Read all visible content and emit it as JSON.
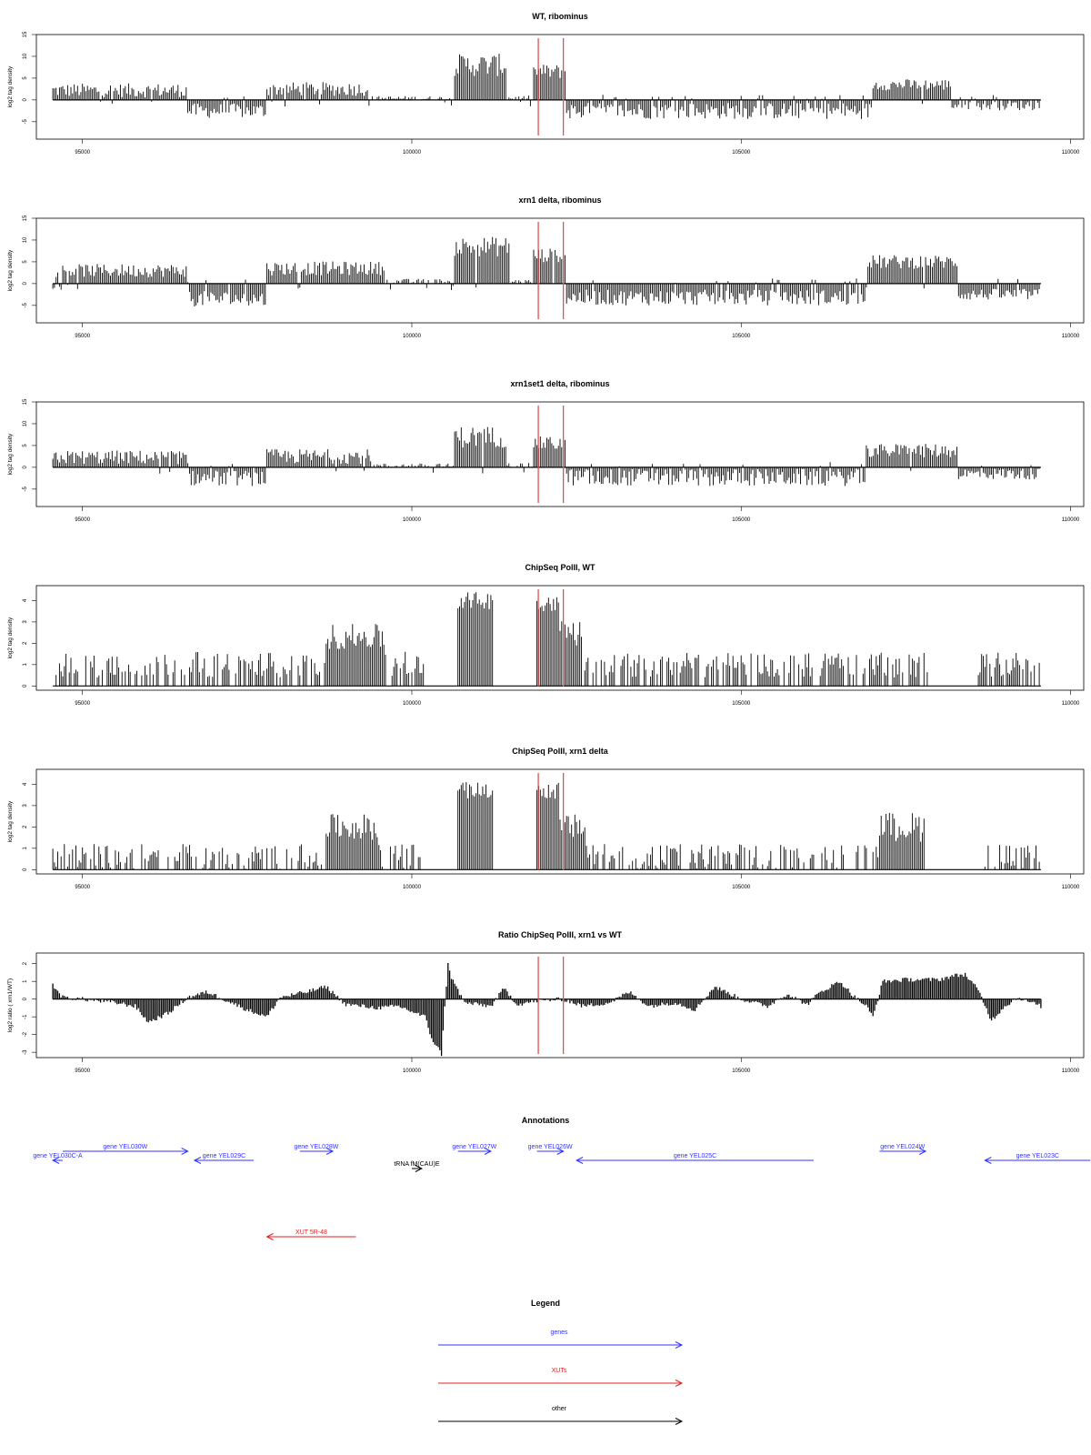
{
  "chart_data": [
    {
      "type": "bar",
      "title": "WT, ribominus",
      "ylabel": "log2 tag density",
      "ylim": [
        -9,
        15
      ],
      "yticks": [
        -5,
        0,
        5,
        10,
        15
      ],
      "xlim": [
        94300,
        110200
      ],
      "xticks": [
        95000,
        100000,
        105000,
        110000
      ],
      "x_start": 94550,
      "x_end": 109550,
      "step": 25,
      "red_lines": [
        101920,
        102300
      ],
      "segments": [
        {
          "x0": 94550,
          "x1": 96600,
          "level": 2.2,
          "var": 1.6,
          "sign": 1
        },
        {
          "x0": 96600,
          "x1": 97800,
          "level": -2.5,
          "var": 1.7,
          "sign": -1
        },
        {
          "x0": 97800,
          "x1": 99350,
          "level": 2.5,
          "var": 1.6,
          "sign": 1
        },
        {
          "x0": 99350,
          "x1": 100650,
          "level": 0.3,
          "var": 0.6,
          "sign": 1
        },
        {
          "x0": 100650,
          "x1": 101430,
          "level": 8.0,
          "var": 2.6,
          "sign": 1
        },
        {
          "x0": 101430,
          "x1": 101850,
          "level": 0.4,
          "var": 0.6,
          "sign": 1
        },
        {
          "x0": 101850,
          "x1": 102350,
          "level": 6.5,
          "var": 1.7,
          "sign": 1
        },
        {
          "x0": 102350,
          "x1": 107000,
          "level": -2.5,
          "var": 1.9,
          "sign": -1
        },
        {
          "x0": 107000,
          "x1": 108200,
          "level": 3.5,
          "var": 1.3,
          "sign": 1
        },
        {
          "x0": 108200,
          "x1": 109550,
          "level": -1.2,
          "var": 1.2,
          "sign": -1
        }
      ]
    },
    {
      "type": "bar",
      "title": "xrn1 delta, ribominus",
      "ylabel": "log2 tag density",
      "ylim": [
        -9,
        15
      ],
      "yticks": [
        -5,
        0,
        5,
        10,
        15
      ],
      "xlim": [
        94300,
        110200
      ],
      "xticks": [
        95000,
        100000,
        105000,
        110000
      ],
      "x_start": 94550,
      "x_end": 109550,
      "step": 25,
      "red_lines": [
        101920,
        102300
      ],
      "segments": [
        {
          "x0": 94550,
          "x1": 96600,
          "level": 3.0,
          "var": 1.5,
          "sign": 1
        },
        {
          "x0": 96600,
          "x1": 97800,
          "level": -3.5,
          "var": 1.8,
          "sign": -1
        },
        {
          "x0": 97800,
          "x1": 99600,
          "level": 3.5,
          "var": 1.6,
          "sign": 1
        },
        {
          "x0": 99600,
          "x1": 100650,
          "level": 0.4,
          "var": 0.7,
          "sign": 1
        },
        {
          "x0": 100650,
          "x1": 101500,
          "level": 8.5,
          "var": 2.3,
          "sign": 1
        },
        {
          "x0": 101500,
          "x1": 101850,
          "level": 0.4,
          "var": 0.6,
          "sign": 1
        },
        {
          "x0": 101850,
          "x1": 102350,
          "level": 6.5,
          "var": 1.6,
          "sign": 1
        },
        {
          "x0": 102350,
          "x1": 106900,
          "level": -3.2,
          "var": 1.8,
          "sign": -1
        },
        {
          "x0": 106900,
          "x1": 108300,
          "level": 5.0,
          "var": 1.6,
          "sign": 1
        },
        {
          "x0": 108300,
          "x1": 109550,
          "level": -2.5,
          "var": 1.3,
          "sign": -1
        }
      ]
    },
    {
      "type": "bar",
      "title": "xrn1set1 delta, ribominus",
      "ylabel": "log2 tag density",
      "ylim": [
        -9,
        15
      ],
      "yticks": [
        -5,
        0,
        5,
        10,
        15
      ],
      "xlim": [
        94300,
        110200
      ],
      "xticks": [
        95000,
        100000,
        105000,
        110000
      ],
      "x_start": 94550,
      "x_end": 109550,
      "step": 25,
      "red_lines": [
        101920,
        102300
      ],
      "segments": [
        {
          "x0": 94550,
          "x1": 96600,
          "level": 2.3,
          "var": 1.6,
          "sign": 1
        },
        {
          "x0": 96600,
          "x1": 97800,
          "level": -2.5,
          "var": 1.8,
          "sign": -1
        },
        {
          "x0": 97800,
          "x1": 99400,
          "level": 2.5,
          "var": 1.7,
          "sign": 1
        },
        {
          "x0": 99400,
          "x1": 100650,
          "level": 0.3,
          "var": 0.6,
          "sign": 1
        },
        {
          "x0": 100650,
          "x1": 101450,
          "level": 7.0,
          "var": 2.5,
          "sign": 1
        },
        {
          "x0": 101450,
          "x1": 101850,
          "level": 0.4,
          "var": 0.6,
          "sign": 1
        },
        {
          "x0": 101850,
          "x1": 102350,
          "level": 5.5,
          "var": 1.6,
          "sign": 1
        },
        {
          "x0": 102350,
          "x1": 106900,
          "level": -2.3,
          "var": 2.0,
          "sign": -1
        },
        {
          "x0": 106900,
          "x1": 108300,
          "level": 3.8,
          "var": 1.6,
          "sign": 1
        },
        {
          "x0": 108300,
          "x1": 109550,
          "level": -1.5,
          "var": 1.3,
          "sign": -1
        }
      ]
    },
    {
      "type": "bar",
      "title": "ChipSeq PolII, WT",
      "ylabel": "log2 tag density",
      "ylim": [
        -0.2,
        4.7
      ],
      "yticks": [
        0,
        1,
        2,
        3,
        4
      ],
      "xlim": [
        94300,
        110200
      ],
      "xticks": [
        95000,
        100000,
        105000,
        110000
      ],
      "x_start": 94550,
      "x_end": 109550,
      "step": 25,
      "red_lines": [
        101920,
        102300
      ],
      "segments": [
        {
          "x0": 94550,
          "x1": 98700,
          "level": 1.0,
          "var": 0.6,
          "sign": 1,
          "sparse": 0.35
        },
        {
          "x0": 98700,
          "x1": 99600,
          "level": 2.3,
          "var": 0.6,
          "sign": 1
        },
        {
          "x0": 99600,
          "x1": 100200,
          "level": 1.0,
          "var": 0.6,
          "sign": 1,
          "sparse": 0.35
        },
        {
          "x0": 100200,
          "x1": 100700,
          "level": 0,
          "var": 0,
          "sign": 1,
          "sparse": 1
        },
        {
          "x0": 100700,
          "x1": 101250,
          "level": 4.0,
          "var": 0.4,
          "sign": 1
        },
        {
          "x0": 101250,
          "x1": 101900,
          "level": 0,
          "var": 0,
          "sign": 1,
          "sparse": 1
        },
        {
          "x0": 101900,
          "x1": 102250,
          "level": 3.9,
          "var": 0.4,
          "sign": 1
        },
        {
          "x0": 102250,
          "x1": 102600,
          "level": 2.5,
          "var": 0.6,
          "sign": 1
        },
        {
          "x0": 102600,
          "x1": 107900,
          "level": 1.0,
          "var": 0.6,
          "sign": 1,
          "sparse": 0.35
        },
        {
          "x0": 107900,
          "x1": 108600,
          "level": 0,
          "var": 0,
          "sign": 1,
          "sparse": 1
        },
        {
          "x0": 108600,
          "x1": 109550,
          "level": 1.0,
          "var": 0.6,
          "sign": 1,
          "sparse": 0.35
        }
      ]
    },
    {
      "type": "bar",
      "title": "ChipSeq PolII, xrn1 delta",
      "ylabel": "log2 tag density",
      "ylim": [
        -0.2,
        4.7
      ],
      "yticks": [
        0,
        1,
        2,
        3,
        4
      ],
      "xlim": [
        94300,
        110200
      ],
      "xticks": [
        95000,
        100000,
        105000,
        110000
      ],
      "x_start": 94550,
      "x_end": 109550,
      "step": 25,
      "red_lines": [
        101920,
        102300
      ],
      "segments": [
        {
          "x0": 94550,
          "x1": 98700,
          "level": 0.6,
          "var": 0.6,
          "sign": 1,
          "sparse": 0.35
        },
        {
          "x0": 98700,
          "x1": 99500,
          "level": 2.0,
          "var": 0.6,
          "sign": 1
        },
        {
          "x0": 99500,
          "x1": 100150,
          "level": 0.6,
          "var": 0.6,
          "sign": 1,
          "sparse": 0.35
        },
        {
          "x0": 100150,
          "x1": 100700,
          "level": 0,
          "var": 0,
          "sign": 1,
          "sparse": 1
        },
        {
          "x0": 100700,
          "x1": 101250,
          "level": 3.7,
          "var": 0.4,
          "sign": 1
        },
        {
          "x0": 101250,
          "x1": 101900,
          "level": 0,
          "var": 0,
          "sign": 1,
          "sparse": 1
        },
        {
          "x0": 101900,
          "x1": 102250,
          "level": 3.7,
          "var": 0.4,
          "sign": 1
        },
        {
          "x0": 102250,
          "x1": 102650,
          "level": 2.0,
          "var": 0.6,
          "sign": 1
        },
        {
          "x0": 102650,
          "x1": 107100,
          "level": 0.6,
          "var": 0.6,
          "sign": 1,
          "sparse": 0.35
        },
        {
          "x0": 107100,
          "x1": 107800,
          "level": 2.0,
          "var": 0.7,
          "sign": 1
        },
        {
          "x0": 107800,
          "x1": 108700,
          "level": 0,
          "var": 0,
          "sign": 1,
          "sparse": 1
        },
        {
          "x0": 108700,
          "x1": 109550,
          "level": 0.6,
          "var": 0.6,
          "sign": 1,
          "sparse": 0.35
        }
      ]
    },
    {
      "type": "area",
      "title": "Ratio ChipSeq PolII, xrn1 vs WT",
      "ylabel": "log2 ratio ( xrn1/WT)",
      "ylim": [
        -3.3,
        2.6
      ],
      "yticks": [
        -3,
        -2,
        -1,
        0,
        1,
        2
      ],
      "xlim": [
        94300,
        110200
      ],
      "xticks": [
        95000,
        100000,
        105000,
        110000
      ],
      "x_start": 94550,
      "x_end": 109550,
      "step": 25,
      "red_lines": [
        101920,
        102300
      ],
      "points": [
        [
          94550,
          0.8
        ],
        [
          94700,
          0.1
        ],
        [
          95000,
          0.0
        ],
        [
          95500,
          -0.2
        ],
        [
          95800,
          -0.4
        ],
        [
          96000,
          -1.3
        ],
        [
          96300,
          -0.8
        ],
        [
          96600,
          0.1
        ],
        [
          96900,
          0.4
        ],
        [
          97200,
          -0.1
        ],
        [
          97500,
          -0.6
        ],
        [
          97800,
          -1.0
        ],
        [
          98000,
          0.1
        ],
        [
          98400,
          0.4
        ],
        [
          98700,
          0.7
        ],
        [
          99000,
          -0.3
        ],
        [
          99500,
          -0.5
        ],
        [
          99800,
          -0.4
        ],
        [
          100200,
          -1.0
        ],
        [
          100300,
          -2.2
        ],
        [
          100450,
          -3.1
        ],
        [
          100550,
          2.1
        ],
        [
          100600,
          1.2
        ],
        [
          100800,
          -0.2
        ],
        [
          101200,
          -0.4
        ],
        [
          101400,
          0.6
        ],
        [
          101600,
          -0.3
        ],
        [
          101900,
          -0.1
        ],
        [
          102300,
          0.0
        ],
        [
          102600,
          -0.4
        ],
        [
          103000,
          -0.2
        ],
        [
          103300,
          0.4
        ],
        [
          103600,
          -0.4
        ],
        [
          104000,
          -0.2
        ],
        [
          104300,
          -0.6
        ],
        [
          104600,
          0.7
        ],
        [
          105000,
          0.0
        ],
        [
          105400,
          -0.4
        ],
        [
          105700,
          0.3
        ],
        [
          106000,
          -0.3
        ],
        [
          106200,
          0.4
        ],
        [
          106500,
          1.0
        ],
        [
          106700,
          0.2
        ],
        [
          106900,
          -0.4
        ],
        [
          107000,
          -1.0
        ],
        [
          107150,
          1.0
        ],
        [
          107500,
          1.1
        ],
        [
          108000,
          1.1
        ],
        [
          108200,
          1.3
        ],
        [
          108400,
          1.4
        ],
        [
          108600,
          0.5
        ],
        [
          108800,
          -1.2
        ],
        [
          109000,
          -0.4
        ],
        [
          109200,
          0.1
        ],
        [
          109550,
          -0.4
        ]
      ]
    }
  ],
  "annotations": {
    "title": "Annotations",
    "features": [
      {
        "label": "gene YEL030C-A",
        "kind": "gene",
        "start": 94550,
        "end": 94700,
        "strand": "-",
        "row": 1
      },
      {
        "label": "gene YEL030W",
        "kind": "gene",
        "start": 94700,
        "end": 96600,
        "strand": "+",
        "row": 0
      },
      {
        "label": "gene YEL029C",
        "kind": "gene",
        "start": 96700,
        "end": 97600,
        "strand": "-",
        "row": 1
      },
      {
        "label": "gene YEL028W",
        "kind": "gene",
        "start": 98300,
        "end": 98800,
        "strand": "+",
        "row": 0
      },
      {
        "label": "tRNA fM(CAU)E",
        "kind": "other",
        "start": 100000,
        "end": 100150,
        "strand": "+",
        "row": 2
      },
      {
        "label": "gene YEL027W",
        "kind": "gene",
        "start": 100700,
        "end": 101200,
        "strand": "+",
        "row": 0
      },
      {
        "label": "gene YEL026W",
        "kind": "gene",
        "start": 101900,
        "end": 102300,
        "strand": "+",
        "row": 0
      },
      {
        "label": "gene YEL025C",
        "kind": "gene",
        "start": 102500,
        "end": 106100,
        "strand": "-",
        "row": 1
      },
      {
        "label": "gene YEL024W",
        "kind": "gene",
        "start": 107100,
        "end": 107800,
        "strand": "+",
        "row": 0
      },
      {
        "label": "gene YEL023C",
        "kind": "gene",
        "start": 108700,
        "end": 110300,
        "strand": "-",
        "row": 1
      },
      {
        "label": "XUT 5R-48",
        "kind": "xut",
        "start": 97800,
        "end": 99150,
        "strand": "-",
        "row": 4
      }
    ]
  },
  "legend": {
    "title": "Legend",
    "items": [
      {
        "label": "genes",
        "color": "#3333ff"
      },
      {
        "label": "XUTs",
        "color": "#e02020"
      },
      {
        "label": "other",
        "color": "#000000"
      }
    ]
  },
  "colors": {
    "gene": "#3333ff",
    "xut": "#e02020",
    "other": "#000000",
    "redline": "#e05050"
  }
}
